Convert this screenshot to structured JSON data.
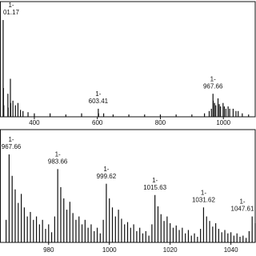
{
  "chart_data": [
    {
      "type": "stem",
      "color": "#111111",
      "x": [
        301,
        302,
        303,
        316,
        317,
        324,
        325,
        332,
        340,
        348,
        356,
        364,
        380,
        400,
        450,
        500,
        550,
        603,
        604,
        620,
        650,
        700,
        750,
        800,
        850,
        900,
        940,
        955,
        962,
        967,
        968,
        972,
        976,
        983,
        987,
        991,
        999,
        1003,
        1008,
        1015,
        1020,
        1031,
        1040,
        1047,
        1060,
        1080
      ],
      "values": [
        84,
        25,
        10,
        20,
        8,
        33,
        12,
        14,
        10,
        12,
        6,
        5,
        4,
        3,
        3,
        2,
        3,
        7,
        3,
        3,
        2,
        2,
        2,
        2,
        2,
        2,
        3,
        5,
        7,
        20,
        14,
        12,
        10,
        16,
        11,
        9,
        12,
        9,
        7,
        9,
        7,
        7,
        5,
        5,
        3,
        2
      ],
      "xlim": [
        291,
        1101
      ],
      "ylim": [
        0,
        100
      ],
      "xticks": [
        400,
        600,
        800,
        1000
      ],
      "annotations": [
        {
          "lines": [
            "1-",
            "01.17"
          ],
          "x": 301,
          "y": 84
        },
        {
          "lines": [
            "1-",
            "603.41"
          ],
          "x": 603,
          "y": 7
        },
        {
          "lines": [
            "1-",
            "967.66"
          ],
          "x": 967,
          "y": 20
        }
      ]
    },
    {
      "type": "stem",
      "color": "#111111",
      "x": [
        966,
        967,
        968,
        969,
        970,
        971,
        972,
        973,
        974,
        975,
        976,
        977,
        978,
        979,
        980,
        981,
        982,
        983,
        984,
        985,
        986,
        987,
        988,
        989,
        990,
        991,
        992,
        993,
        994,
        995,
        996,
        997,
        998,
        999,
        1000,
        1001,
        1002,
        1003,
        1004,
        1005,
        1006,
        1007,
        1008,
        1009,
        1010,
        1011,
        1012,
        1013,
        1014,
        1015,
        1016,
        1017,
        1018,
        1019,
        1020,
        1021,
        1022,
        1023,
        1024,
        1025,
        1026,
        1027,
        1028,
        1029,
        1030,
        1031,
        1032,
        1033,
        1034,
        1035,
        1036,
        1037,
        1038,
        1039,
        1040,
        1041,
        1042,
        1043,
        1044,
        1045,
        1046,
        1047,
        1048
      ],
      "values": [
        20,
        78,
        59,
        47,
        35,
        43,
        31,
        23,
        27,
        20,
        23,
        16,
        20,
        12,
        16,
        9,
        23,
        65,
        49,
        39,
        29,
        36,
        26,
        20,
        23,
        16,
        20,
        13,
        16,
        10,
        13,
        8,
        20,
        52,
        39,
        31,
        23,
        29,
        21,
        16,
        18,
        13,
        16,
        10,
        13,
        8,
        10,
        6,
        16,
        42,
        32,
        25,
        19,
        23,
        17,
        13,
        15,
        11,
        13,
        8,
        11,
        6,
        8,
        5,
        12,
        31,
        23,
        19,
        14,
        17,
        12,
        9,
        11,
        8,
        9,
        6,
        8,
        5,
        6,
        4,
        10,
        23,
        17
      ],
      "xlim": [
        964,
        1048
      ],
      "ylim": [
        0,
        100
      ],
      "xticks": [
        980,
        1000,
        1020,
        1040
      ],
      "annotations": [
        {
          "lines": [
            "1-",
            "967.66"
          ],
          "x": 967,
          "y": 78
        },
        {
          "lines": [
            "1-",
            "983.66"
          ],
          "x": 983,
          "y": 65
        },
        {
          "lines": [
            "1-",
            "999.62"
          ],
          "x": 999,
          "y": 52
        },
        {
          "lines": [
            "1-",
            "1015.63"
          ],
          "x": 1015,
          "y": 42
        },
        {
          "lines": [
            "1-",
            "1031.62"
          ],
          "x": 1031,
          "y": 31
        },
        {
          "lines": [
            "1-",
            "1047.61"
          ],
          "x": 1047,
          "y": 23
        }
      ]
    }
  ]
}
